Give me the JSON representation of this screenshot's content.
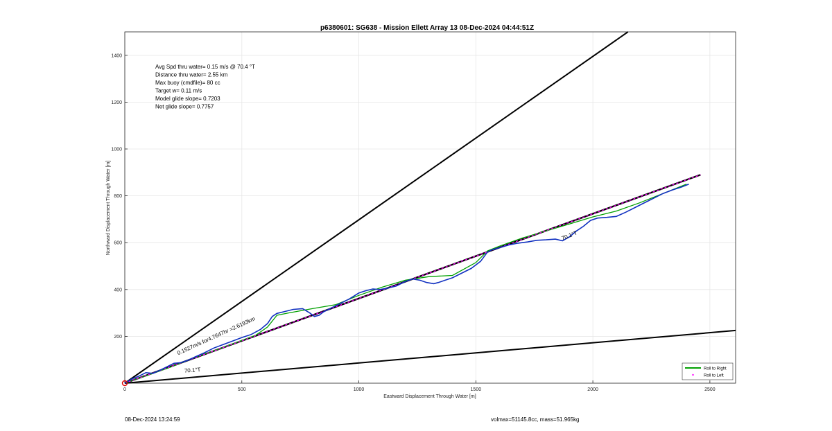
{
  "chart_data": {
    "type": "line",
    "title": "p6380601: SG638 - Mission Ellett Array 13 08-Dec-2024 04:44:51Z",
    "xlabel": "Eastward Displacement Through Water [m]",
    "ylabel": "Northward Displacement Through Water [m]",
    "xlim": [
      0,
      2610
    ],
    "ylim": [
      0,
      1500
    ],
    "xticks": [
      0,
      500,
      1000,
      1500,
      2000,
      2500
    ],
    "yticks": [
      200,
      400,
      600,
      800,
      1000,
      1200,
      1400
    ],
    "grid": true,
    "legend_position": "bottom-right",
    "legend": [
      {
        "label": "Roll to Right",
        "color": "#00a000",
        "style": "solid"
      },
      {
        "label": "Roll to Left",
        "color": "#ff00ff",
        "style": "dots"
      }
    ],
    "info_lines": [
      "Avg Spd thru water=  0.15 m/s @  70.4 °T",
      "Distance thru water=  2.55 km",
      "Max buoy (cmdfile)= 80 cc",
      "Target w= 0.11 m/s",
      "Model glide slope= 0.7203",
      "Net glide slope= 0.7757"
    ],
    "annotations": [
      {
        "text": "0.1527m/s for4.7647hr =2.6193km",
        "x": 228,
        "y": 120
      },
      {
        "text": "70.1°T",
        "x": 255,
        "y": 45
      },
      {
        "text": "70.1°T",
        "x": 1870,
        "y": 610
      }
    ],
    "bounding_lines": [
      {
        "name": "upper",
        "x": [
          0,
          2150
        ],
        "y": [
          0,
          1500
        ]
      },
      {
        "name": "lower",
        "x": [
          0,
          2610
        ],
        "y": [
          0,
          225
        ]
      }
    ],
    "heading_line": {
      "x": [
        0,
        2460
      ],
      "y": [
        0,
        890
      ]
    },
    "series": [
      {
        "name": "Roll to Right",
        "color": "#00a000",
        "x": [
          0,
          100,
          200,
          300,
          400,
          480,
          560,
          610,
          650,
          700,
          800,
          900,
          1000,
          1100,
          1200,
          1300,
          1400,
          1500,
          1550,
          1600,
          1700,
          1800,
          1900,
          2000,
          2100,
          2200,
          2300,
          2400
        ],
        "y": [
          0,
          35,
          70,
          110,
          145,
          175,
          205,
          240,
          290,
          300,
          318,
          335,
          375,
          410,
          440,
          455,
          460,
          515,
          565,
          585,
          620,
          650,
          680,
          710,
          735,
          770,
          810,
          850
        ]
      },
      {
        "name": "Roll to Left",
        "color": "#ff00ff",
        "x": [
          0,
          2460
        ],
        "y": [
          0,
          890
        ]
      },
      {
        "name": "Track",
        "color": "#1030c0",
        "x": [
          0,
          30,
          60,
          90,
          120,
          150,
          180,
          210,
          240,
          270,
          300,
          340,
          380,
          420,
          460,
          500,
          540,
          580,
          610,
          630,
          650,
          680,
          720,
          760,
          790,
          810,
          830,
          850,
          880,
          920,
          960,
          1000,
          1030,
          1060,
          1090,
          1120,
          1160,
          1200,
          1230,
          1260,
          1290,
          1320,
          1340,
          1370,
          1400,
          1440,
          1480,
          1520,
          1550,
          1570,
          1600,
          1640,
          1680,
          1720,
          1760,
          1800,
          1840,
          1870,
          1900,
          1930,
          1960,
          1990,
          2020,
          2060,
          2100,
          2140,
          2180,
          2210,
          2240,
          2270,
          2300,
          2340,
          2380,
          2410
        ],
        "y": [
          0,
          18,
          30,
          45,
          42,
          55,
          70,
          85,
          88,
          98,
          112,
          130,
          150,
          165,
          180,
          195,
          208,
          230,
          255,
          285,
          298,
          305,
          315,
          318,
          300,
          285,
          290,
          305,
          320,
          340,
          360,
          385,
          395,
          402,
          400,
          405,
          415,
          435,
          445,
          440,
          430,
          425,
          430,
          440,
          450,
          470,
          490,
          520,
          560,
          570,
          578,
          590,
          598,
          603,
          610,
          612,
          615,
          608,
          625,
          650,
          670,
          695,
          705,
          708,
          712,
          730,
          750,
          765,
          780,
          795,
          810,
          825,
          838,
          850
        ]
      }
    ]
  },
  "footer": {
    "timestamp": "08-Dec-2024 13:24:59",
    "volume_mass": "volmax=51145.8cc, mass=51.965kg"
  }
}
